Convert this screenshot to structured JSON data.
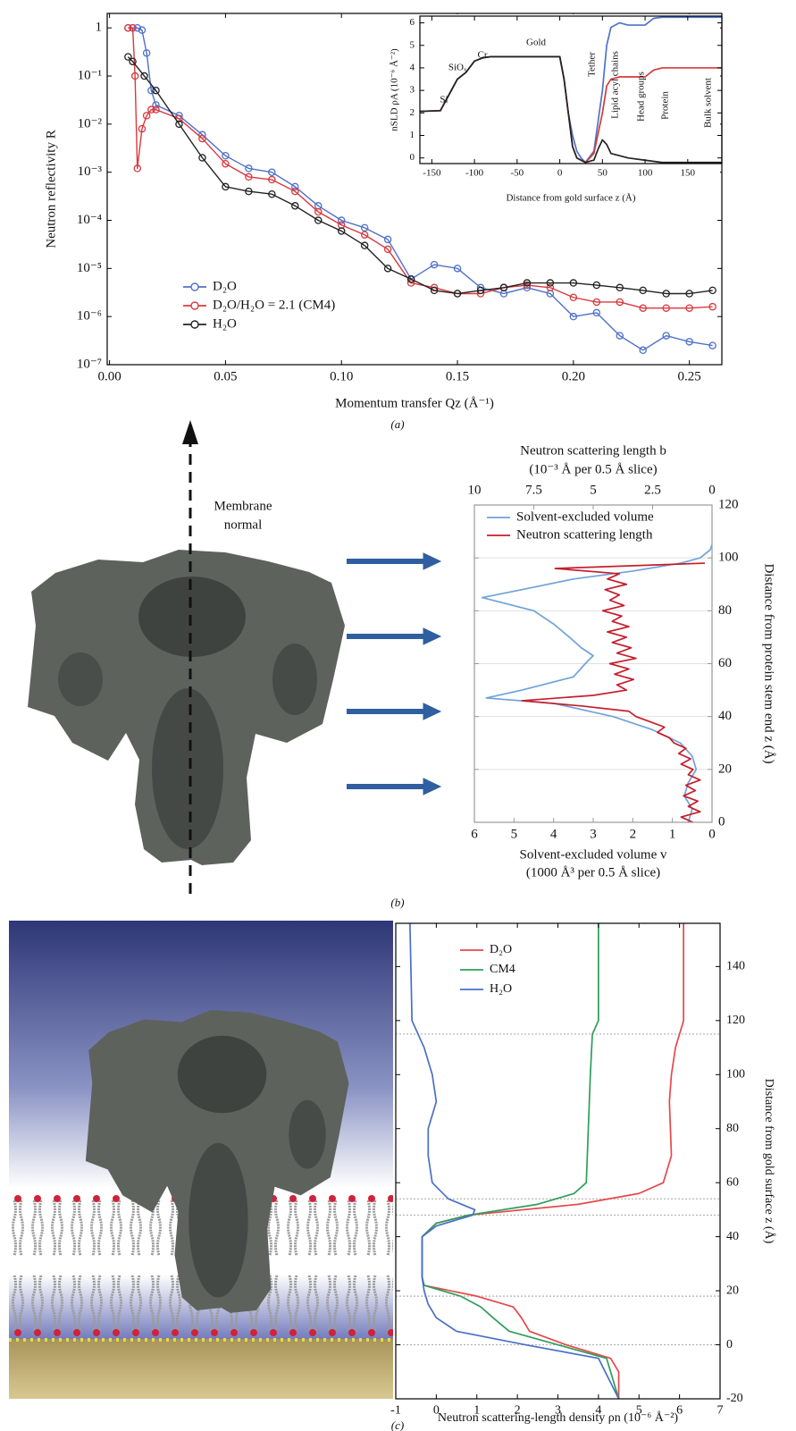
{
  "chart_data": [
    {
      "type": "line",
      "caption": "(a)",
      "xlabel": "Momentum transfer Qz (Å⁻¹)",
      "ylabel": "Neutron reflectivity R",
      "xlim": [
        -0.001,
        0.264
      ],
      "ylim": [
        1e-07,
        2
      ],
      "log_y": true,
      "markers": true,
      "legend": "lower left",
      "xticks": [
        {
          "value": 0,
          "label": "0.00"
        },
        0.05,
        {
          "value": 0.1,
          "label": "0.10"
        },
        0.15,
        {
          "value": 0.2,
          "label": "0.20"
        },
        0.25
      ],
      "yticks": [
        1,
        {
          "value": 0.1,
          "label": "10⁻¹"
        },
        {
          "value": 0.01,
          "label": "10⁻²"
        },
        {
          "value": 0.001,
          "label": "10⁻³"
        },
        {
          "value": 0.0001,
          "label": "10⁻⁴"
        },
        {
          "value": 1e-05,
          "label": "10⁻⁵"
        },
        {
          "value": 1e-06,
          "label": "10⁻⁶"
        },
        {
          "value": 1e-07,
          "label": "10⁻⁷"
        }
      ],
      "series": [
        {
          "name": "D₂O",
          "color": "#4f70c8",
          "x": [
            0.008,
            0.01,
            0.012,
            0.014,
            0.016,
            0.018,
            0.02,
            0.03,
            0.04,
            0.05,
            0.06,
            0.07,
            0.08,
            0.09,
            0.1,
            0.11,
            0.12,
            0.13,
            0.14,
            0.15,
            0.16,
            0.17,
            0.18,
            0.19,
            0.2,
            0.21,
            0.22,
            0.23,
            0.24,
            0.25,
            0.26
          ],
          "values": [
            1,
            1,
            1,
            0.9,
            0.3,
            0.05,
            0.025,
            0.015,
            0.006,
            0.0022,
            0.0012,
            0.001,
            0.0005,
            0.0002,
            0.0001,
            7e-05,
            4e-05,
            6e-06,
            1.2e-05,
            1e-05,
            4e-06,
            3e-06,
            4e-06,
            3e-06,
            1e-06,
            1.2e-06,
            4e-07,
            2e-07,
            4e-07,
            3e-07,
            2.5e-07
          ]
        },
        {
          "name": "D₂O/H₂O = 2.1 (CM4)",
          "color": "#d9393e",
          "x": [
            0.008,
            0.01,
            0.011,
            0.012,
            0.014,
            0.016,
            0.018,
            0.02,
            0.03,
            0.04,
            0.05,
            0.06,
            0.07,
            0.08,
            0.09,
            0.1,
            0.11,
            0.12,
            0.13,
            0.14,
            0.15,
            0.16,
            0.17,
            0.18,
            0.19,
            0.2,
            0.21,
            0.22,
            0.23,
            0.24,
            0.25,
            0.26
          ],
          "values": [
            1,
            1,
            0.1,
            0.0012,
            0.008,
            0.015,
            0.02,
            0.02,
            0.013,
            0.005,
            0.0015,
            0.0008,
            0.0007,
            0.0004,
            0.00015,
            8e-05,
            5e-05,
            2.5e-05,
            5e-06,
            4e-06,
            3e-06,
            3e-06,
            4e-06,
            4.5e-06,
            4e-06,
            2.5e-06,
            2e-06,
            2e-06,
            1.5e-06,
            1.5e-06,
            1.5e-06,
            1.6e-06
          ]
        },
        {
          "name": "H₂O",
          "color": "#222222",
          "x": [
            0.008,
            0.01,
            0.015,
            0.02,
            0.03,
            0.04,
            0.05,
            0.06,
            0.07,
            0.08,
            0.09,
            0.1,
            0.11,
            0.12,
            0.13,
            0.14,
            0.15,
            0.16,
            0.17,
            0.18,
            0.19,
            0.2,
            0.21,
            0.22,
            0.23,
            0.24,
            0.25,
            0.26
          ],
          "values": [
            0.25,
            0.2,
            0.1,
            0.05,
            0.01,
            0.002,
            0.0005,
            0.0004,
            0.00035,
            0.0002,
            0.0001,
            6e-05,
            3e-05,
            1e-05,
            6e-06,
            3.5e-06,
            3e-06,
            3.5e-06,
            4e-06,
            5e-06,
            5e-06,
            5e-06,
            4.5e-06,
            4e-06,
            3.5e-06,
            3e-06,
            3e-06,
            3.5e-06
          ]
        }
      ]
    },
    {
      "type": "line",
      "xlabel": "Distance from gold surface z (Å)",
      "ylabel": "nSLD ρA (10⁻⁶ Å⁻²)",
      "xlim": [
        -164,
        190
      ],
      "ylim": [
        -0.25,
        6.3
      ],
      "xticks": [
        -150,
        -100,
        -50,
        0,
        50,
        100,
        150
      ],
      "yticks": [
        0,
        1,
        2,
        3,
        4,
        5,
        6
      ],
      "annotations": [
        "Si",
        "SiOₓ",
        "Cr",
        "Gold",
        "Tether",
        "Lipid acyl chains",
        "Head groups",
        "Protein",
        "Bulk solvent"
      ],
      "series": [
        {
          "color": "#4f73c9",
          "x": [
            -164,
            -140,
            -130,
            -120,
            -110,
            -100,
            -90,
            -80,
            0,
            5,
            10,
            15,
            20,
            25,
            30,
            40,
            50,
            55,
            60,
            70,
            80,
            100,
            110,
            120,
            190
          ],
          "values": [
            2.07,
            2.1,
            2.8,
            3.5,
            3.8,
            4.3,
            4.45,
            4.5,
            4.5,
            3.5,
            2,
            1,
            0.3,
            0,
            -0.2,
            0.3,
            3,
            5,
            5.8,
            6,
            5.9,
            5.9,
            6.2,
            6.25,
            6.25
          ]
        },
        {
          "color": "#d43a3a",
          "x": [
            -164,
            -140,
            -130,
            -120,
            -110,
            -100,
            -90,
            -80,
            0,
            5,
            10,
            15,
            20,
            30,
            40,
            50,
            55,
            60,
            70,
            100,
            110,
            120,
            190
          ],
          "values": [
            2.07,
            2.1,
            2.8,
            3.5,
            3.8,
            4.3,
            4.45,
            4.5,
            4.5,
            3.5,
            2,
            0.5,
            0,
            -0.2,
            0.2,
            2,
            3.2,
            3.5,
            3.6,
            3.6,
            3.9,
            4,
            4
          ]
        },
        {
          "color": "#222222",
          "x": [
            -164,
            -140,
            -130,
            -120,
            -110,
            -100,
            -90,
            -80,
            0,
            5,
            10,
            15,
            20,
            30,
            40,
            45,
            50,
            55,
            60,
            80,
            100,
            120,
            190
          ],
          "values": [
            2.07,
            2.1,
            2.8,
            3.5,
            3.8,
            4.3,
            4.45,
            4.5,
            4.5,
            3.5,
            2,
            0.5,
            0,
            -0.2,
            -0.1,
            0.4,
            0.8,
            0.6,
            0.2,
            0,
            -0.1,
            -0.2,
            -0.2
          ]
        }
      ]
    },
    {
      "type": "line",
      "caption": "(b)",
      "illustration_label": [
        "Membrane",
        "normal"
      ],
      "xlabel": [
        "Solvent-excluded volume v",
        "(1000 Å³ per 0.5 Å slice)"
      ],
      "x2label": [
        "Neutron scattering length b",
        "(10⁻³ Å per 0.5 Å slice)"
      ],
      "ylabel": "Distance from protein stem end z (Å)",
      "xlim": [
        6,
        0
      ],
      "x2lim": [
        10,
        0
      ],
      "ylim": [
        0,
        120
      ],
      "grid": true,
      "legend": "upper right",
      "xticks": [
        6,
        5,
        4,
        3,
        2,
        1,
        0
      ],
      "x2ticks": [
        10,
        7.5,
        5,
        2.5,
        0
      ],
      "yticks": [
        0,
        20,
        40,
        60,
        80,
        100,
        120
      ],
      "series": [
        {
          "name": "Solvent-excluded volume",
          "color": "#6fa3d8",
          "axis": "x",
          "z": [
            0,
            5,
            10,
            15,
            20,
            25,
            30,
            35,
            40,
            45,
            47,
            50,
            55,
            60,
            63,
            66,
            70,
            75,
            80,
            85,
            88,
            92,
            95,
            98,
            100,
            103,
            105
          ],
          "values": [
            0.6,
            0.5,
            0.7,
            0.6,
            0.4,
            0.5,
            0.8,
            1.5,
            2.5,
            4,
            5.7,
            4.8,
            3.5,
            3.2,
            3,
            3.3,
            3.6,
            4,
            4.5,
            5.8,
            4.8,
            3.5,
            2,
            0.8,
            0.3,
            0.05,
            0
          ]
        },
        {
          "name": "Neutron scattering length",
          "color": "#c41f2c",
          "axis": "x2",
          "z": [
            0,
            2,
            4,
            6,
            8,
            10,
            12,
            14,
            16,
            18,
            20,
            22,
            24,
            26,
            28,
            30,
            32,
            34,
            36,
            38,
            40,
            42,
            44,
            46,
            48,
            50,
            52,
            54,
            56,
            58,
            60,
            62,
            64,
            66,
            68,
            70,
            72,
            74,
            76,
            78,
            80,
            82,
            84,
            86,
            88,
            90,
            92,
            94,
            96,
            98
          ],
          "values": [
            0.8,
            1.3,
            0.5,
            1,
            0.6,
            1.2,
            0.7,
            1.1,
            0.5,
            1,
            0.8,
            1.3,
            0.9,
            1.4,
            1.1,
            1.6,
            1.8,
            2.3,
            2,
            2.6,
            3.2,
            3.5,
            5.5,
            8,
            5,
            3.6,
            4,
            3.3,
            4.1,
            3.5,
            4.3,
            3.2,
            4,
            3.4,
            4.2,
            3.6,
            4.4,
            3.5,
            4.2,
            3.8,
            4.6,
            3.7,
            4.3,
            3.9,
            4.5,
            3.6,
            4.4,
            3.9,
            6.6,
            0.3
          ]
        }
      ]
    },
    {
      "type": "line",
      "caption": "(c)",
      "xlabel": "Neutron scattering-length density ρn (10⁻⁶ Å⁻²)",
      "ylabel": "Distance from gold surface z (Å)",
      "legend": "upper left",
      "xlim": [
        -1,
        7
      ],
      "ylim": [
        -20,
        156
      ],
      "xticks": [
        -1,
        0,
        1,
        2,
        3,
        4,
        5,
        6,
        7
      ],
      "yticks": [
        -20,
        0,
        20,
        40,
        60,
        80,
        100,
        120,
        140
      ],
      "hlines": [
        0,
        18,
        48,
        54,
        115
      ],
      "series": [
        {
          "name": "D₂O",
          "color": "#e8474a",
          "z": [
            -20,
            -10,
            -5,
            0,
            5,
            10,
            14,
            18,
            22,
            25,
            40,
            45,
            48,
            52,
            56,
            60,
            70,
            90,
            100,
            110,
            115,
            120,
            156
          ],
          "values": [
            4.5,
            4.5,
            4.3,
            3.2,
            2.3,
            2.1,
            1.9,
            1,
            -0.3,
            -0.35,
            -0.35,
            0,
            0.8,
            3.5,
            5,
            5.6,
            5.8,
            5.75,
            5.8,
            5.9,
            6,
            6.1,
            6.1
          ]
        },
        {
          "name": "CM4",
          "color": "#2e9e5a",
          "z": [
            -20,
            -5,
            0,
            5,
            10,
            14,
            18,
            22,
            25,
            40,
            45,
            48,
            52,
            56,
            60,
            100,
            115,
            120,
            156
          ],
          "values": [
            4.5,
            4.2,
            3,
            1.8,
            1.4,
            1.1,
            0.6,
            -0.3,
            -0.35,
            -0.35,
            0,
            0.8,
            2.5,
            3.4,
            3.7,
            3.8,
            3.85,
            4,
            4
          ]
        },
        {
          "name": "H₂O",
          "color": "#4a6fc6",
          "z": [
            -20,
            -5,
            0,
            5,
            10,
            15,
            20,
            25,
            40,
            44,
            48,
            50,
            54,
            60,
            70,
            80,
            90,
            100,
            110,
            120,
            156
          ],
          "values": [
            4.5,
            4,
            2.2,
            0.5,
            0,
            -0.2,
            -0.3,
            -0.35,
            -0.35,
            0,
            0.9,
            0.95,
            0.3,
            -0.1,
            -0.2,
            -0.2,
            0,
            -0.1,
            -0.3,
            -0.6,
            -0.65
          ]
        }
      ]
    }
  ]
}
